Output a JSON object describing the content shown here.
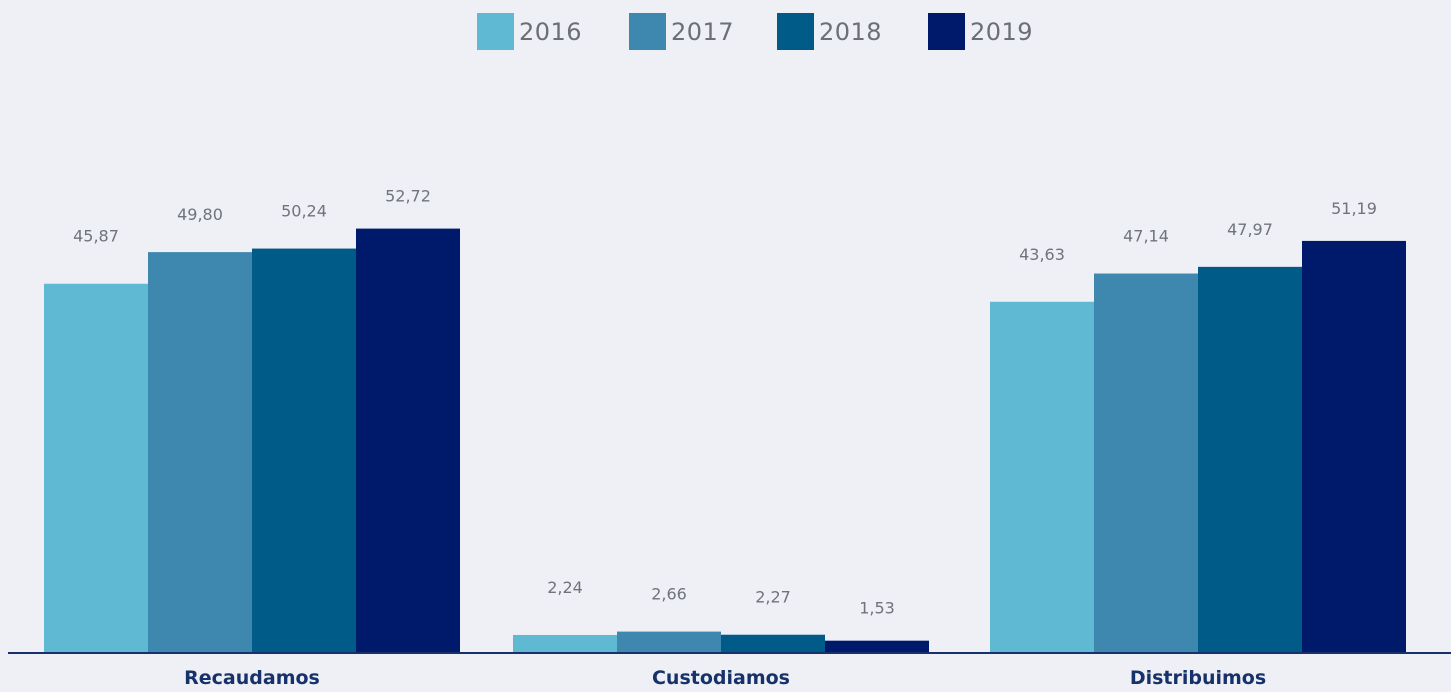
{
  "chart_data": {
    "type": "bar",
    "title": "",
    "xlabel": "",
    "ylabel": "",
    "categories": [
      "Recaudamos",
      "Custodiamos",
      "Distribuimos"
    ],
    "series": [
      {
        "name": "2016",
        "color": "#60b9d2",
        "values": [
          45.87,
          2.24,
          43.63
        ],
        "labels": [
          "45,87",
          "2,24",
          "43,63"
        ]
      },
      {
        "name": "2017",
        "color": "#3e88b0",
        "values": [
          49.8,
          2.66,
          47.14
        ],
        "labels": [
          "49,80",
          "2,66",
          "47,14"
        ]
      },
      {
        "name": "2018",
        "color": "#005b88",
        "values": [
          50.24,
          2.27,
          47.97
        ],
        "labels": [
          "50,24",
          "2,27",
          "47,97"
        ]
      },
      {
        "name": "2019",
        "color": "#001a6b",
        "values": [
          52.72,
          1.53,
          51.19
        ],
        "labels": [
          "52,72",
          "1,53",
          "51,19"
        ]
      }
    ],
    "ylim": [
      0,
      60
    ],
    "legend": "top-center",
    "grid": false
  },
  "colors": {
    "background": "#eef0f5",
    "baseline": "#17316b",
    "category_label": "#17316b",
    "value_label": "#6f737b"
  }
}
